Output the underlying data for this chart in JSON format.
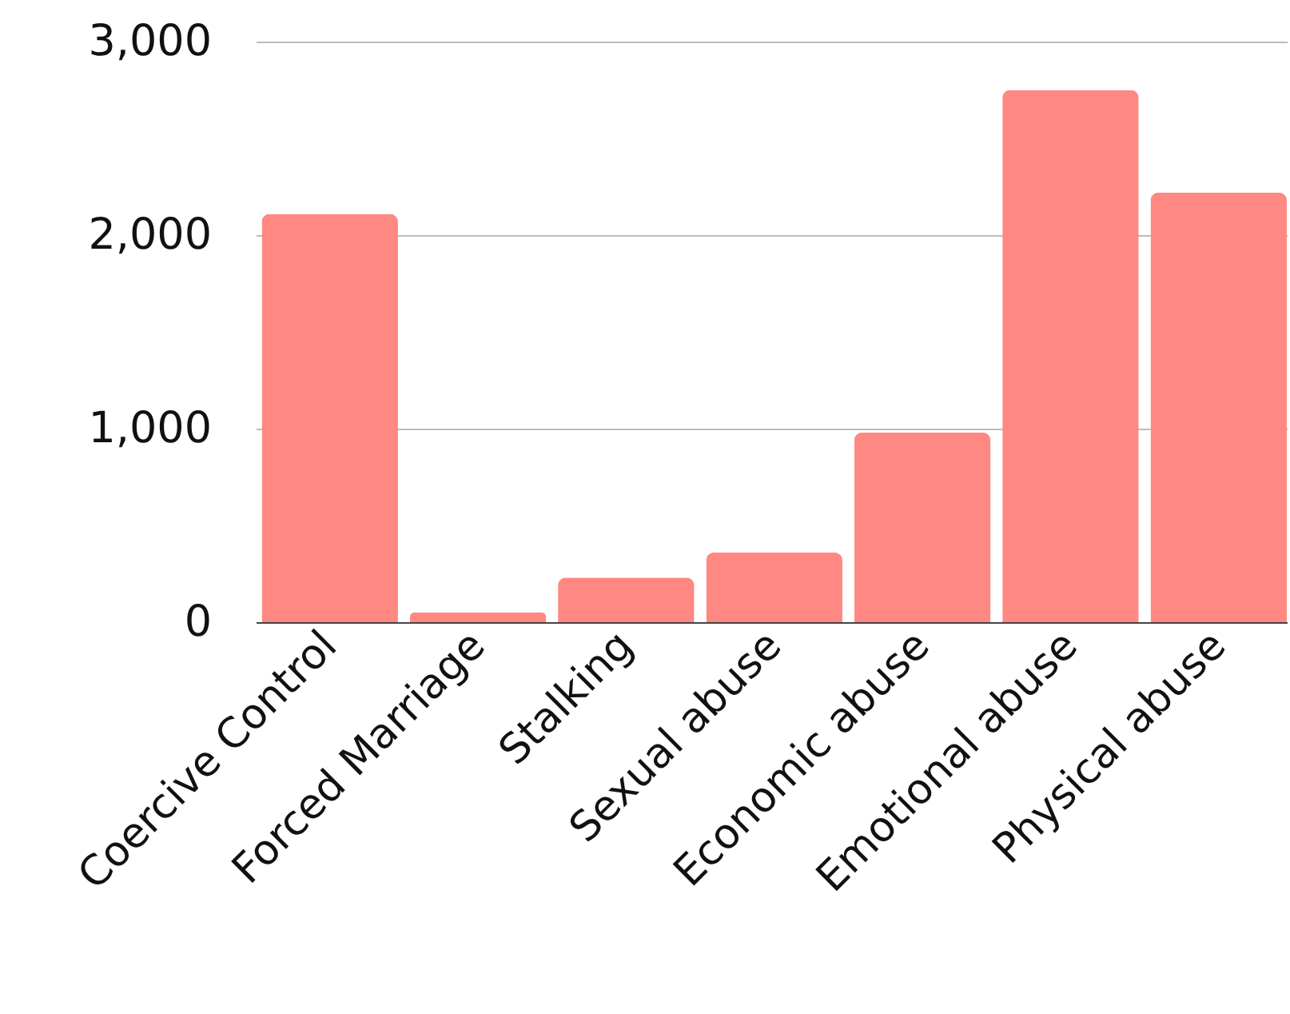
{
  "chart_data": {
    "type": "bar",
    "categories": [
      "Coercive Control",
      "Forced Marriage",
      "Stalking",
      "Sexual abuse",
      "Economic abuse",
      "Emotional abuse",
      "Physical abuse"
    ],
    "values": [
      2110,
      50,
      230,
      360,
      980,
      2750,
      2220
    ],
    "color": "#ff8882",
    "ylim": [
      0,
      3000
    ],
    "yticks": [
      0,
      {
        "value": 1000,
        "label": "1,000"
      },
      {
        "value": 2000,
        "label": "2,000"
      },
      {
        "value": 3000,
        "label": "3,000"
      }
    ],
    "grid": "y"
  }
}
